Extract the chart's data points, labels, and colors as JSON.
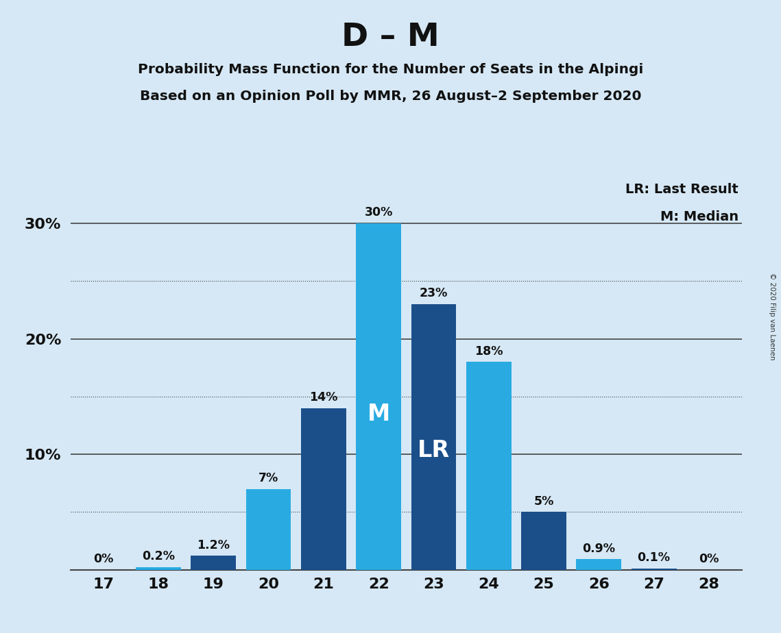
{
  "title": "D – M",
  "subtitle1": "Probability Mass Function for the Number of Seats in the Alpingi",
  "subtitle2": "Based on an Opinion Poll by MMR, 26 August–2 September 2020",
  "copyright": "© 2020 Filip van Laenen",
  "seats": [
    17,
    18,
    19,
    20,
    21,
    22,
    23,
    24,
    25,
    26,
    27,
    28
  ],
  "probabilities": [
    0.0,
    0.2,
    1.2,
    7.0,
    14.0,
    30.0,
    23.0,
    18.0,
    5.0,
    0.9,
    0.1,
    0.0
  ],
  "bar_labels": [
    "0%",
    "0.2%",
    "1.2%",
    "7%",
    "14%",
    "30%",
    "23%",
    "18%",
    "5%",
    "0.9%",
    "0.1%",
    "0%"
  ],
  "median_seat": 22,
  "last_result_seat": 23,
  "color_light_blue": "#29ABE2",
  "color_dark_blue": "#1B4F8A",
  "color_background": "#D6E8F5",
  "legend_lr": "LR: Last Result",
  "legend_m": "M: Median",
  "ytick_labels": [
    "10%",
    "20%",
    "30%"
  ],
  "ytick_values": [
    10,
    20,
    30
  ],
  "ylim": [
    0,
    34
  ],
  "solid_gridlines": [
    10,
    20,
    30
  ],
  "dotted_gridlines": [
    5,
    15,
    25
  ],
  "bar_colors": [
    "#29ABE2",
    "#29ABE2",
    "#1B4F8A",
    "#29ABE2",
    "#1B4F8A",
    "#29ABE2",
    "#1B4F8A",
    "#29ABE2",
    "#1B4F8A",
    "#29ABE2",
    "#1B4F8A",
    "#29ABE2"
  ]
}
